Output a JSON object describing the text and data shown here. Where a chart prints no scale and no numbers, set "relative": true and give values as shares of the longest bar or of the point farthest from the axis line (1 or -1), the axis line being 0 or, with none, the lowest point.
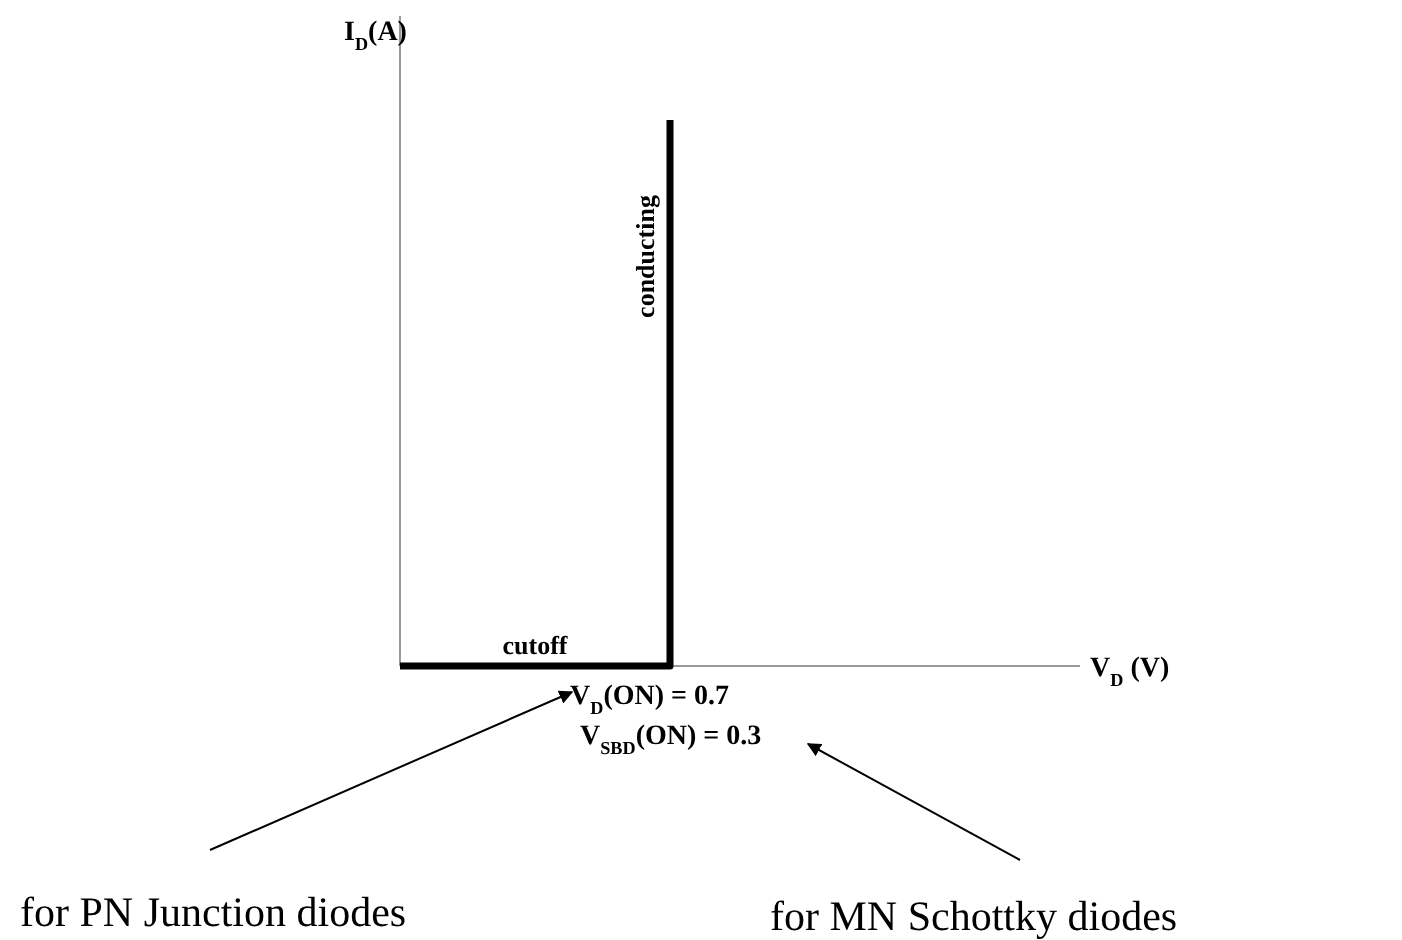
{
  "chart_data": {
    "type": "step",
    "relative": true,
    "ylabel": "I$_{D}$(A)",
    "categories": [
      null,
      null
    ],
    "values": [
      0,
      1
    ],
    "color": "#000000",
    "marker": "none",
    "line_style": "solid",
    "annotations": [
      "cutoff",
      "conducting",
      "V$_{D}$(ON) = 0.7",
      "V$_{SBD}$(ON) = 0.3",
      "for PN Junction diodes",
      "for MN Schottky diodes",
      "V$_{D}$ (V)"
    ]
  }
}
